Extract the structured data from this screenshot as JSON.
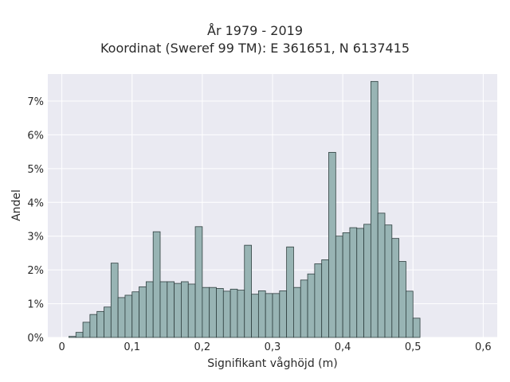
{
  "chart_data": {
    "type": "bar",
    "title_line1": "År 1979 - 2019",
    "title_line2": "Koordinat (Sweref 99 TM): E 361651, N 6137415",
    "xlabel": "Signifikant våghöjd (m)",
    "ylabel": "Andel",
    "xlim": [
      -0.02,
      0.62
    ],
    "ylim": [
      0,
      0.078
    ],
    "xticks": [
      0,
      0.1,
      0.2,
      0.3,
      0.4,
      0.5,
      0.6
    ],
    "xtick_labels": [
      "0",
      "0,1",
      "0,2",
      "0,3",
      "0,4",
      "0,5",
      "0,6"
    ],
    "yticks": [
      0,
      0.01,
      0.02,
      0.03,
      0.04,
      0.05,
      0.06,
      0.07
    ],
    "ytick_labels": [
      "0%",
      "1%",
      "2%",
      "3%",
      "4%",
      "5%",
      "6%",
      "7%"
    ],
    "bin_start": 0.01,
    "bin_width": 0.01,
    "values": [
      0.0003,
      0.0015,
      0.0045,
      0.0068,
      0.0077,
      0.009,
      0.022,
      0.0118,
      0.0125,
      0.0135,
      0.015,
      0.0165,
      0.0313,
      0.0165,
      0.0165,
      0.016,
      0.0165,
      0.0158,
      0.0328,
      0.0148,
      0.0148,
      0.0145,
      0.0137,
      0.0143,
      0.014,
      0.0273,
      0.0128,
      0.0138,
      0.013,
      0.013,
      0.0138,
      0.0268,
      0.0148,
      0.017,
      0.0188,
      0.0218,
      0.023,
      0.0548,
      0.03,
      0.031,
      0.0325,
      0.0323,
      0.0335,
      0.0758,
      0.0368,
      0.0333,
      0.0293,
      0.0225,
      0.0137,
      0.0057
    ],
    "bar_color": "#98b4b4",
    "bar_edge_color": "#2f3f3f",
    "plot_background": "#eaeaf2",
    "grid": true,
    "grid_color": "#ffffff"
  }
}
